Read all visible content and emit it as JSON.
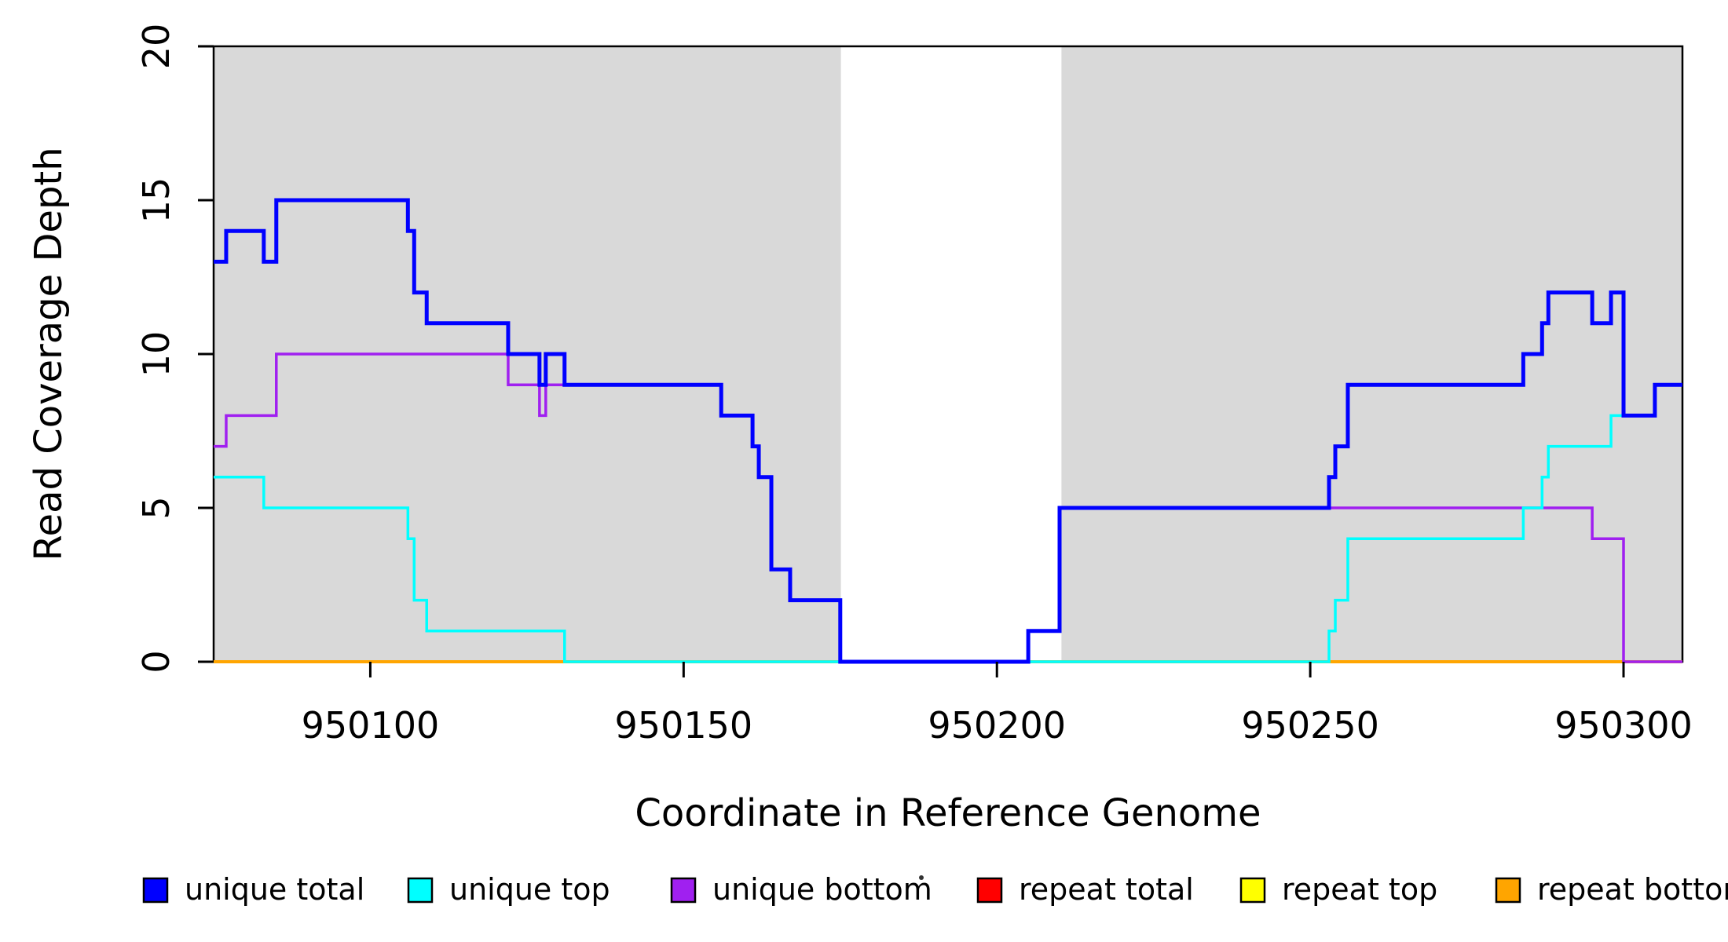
{
  "chart_data": {
    "type": "line",
    "subtype": "step-post",
    "title": "",
    "xlabel": "Coordinate in Reference Genome",
    "ylabel": "Read Coverage Depth",
    "xlim": [
      950075,
      950309.4
    ],
    "ylim": [
      0,
      20
    ],
    "x_ticks": [
      950100,
      950150,
      950200,
      950250,
      950300
    ],
    "x_tick_labels": [
      "950100",
      "950150",
      "950200",
      "950250",
      "950300"
    ],
    "y_ticks": [
      0,
      5,
      10,
      15,
      20
    ],
    "y_tick_labels": [
      "0",
      "5",
      "10",
      "15",
      "20"
    ],
    "grid": false,
    "plot_background": "#ffffff",
    "shade_color": "#d9d9d9",
    "shaded_regions": [
      [
        950075,
        950175.1
      ],
      [
        950210.3,
        950309.4
      ]
    ],
    "series": [
      {
        "name": "repeat total",
        "color": "#ff0000",
        "width": 3.5,
        "points": [
          [
            950075,
            0
          ],
          [
            950309.4,
            0
          ]
        ]
      },
      {
        "name": "repeat top",
        "color": "#ffff00",
        "width": 3.5,
        "points": [
          [
            950075,
            0
          ],
          [
            950309.4,
            0
          ]
        ]
      },
      {
        "name": "repeat bottom",
        "color": "#ffa500",
        "width": 4,
        "points": [
          [
            950075,
            0
          ],
          [
            950309.4,
            0
          ]
        ]
      },
      {
        "name": "unique bottom",
        "color": "#a020f0",
        "width": 3.5,
        "points": [
          [
            950075,
            7
          ],
          [
            950077,
            8
          ],
          [
            950085,
            10
          ],
          [
            950122,
            9
          ],
          [
            950127,
            8
          ],
          [
            950128,
            9
          ],
          [
            950156,
            8
          ],
          [
            950161,
            7
          ],
          [
            950162,
            6
          ],
          [
            950164,
            3
          ],
          [
            950167,
            2
          ],
          [
            950175,
            0
          ],
          [
            950205,
            1
          ],
          [
            950210,
            5
          ],
          [
            950295,
            4
          ],
          [
            950300,
            0
          ],
          [
            950309.4,
            0
          ]
        ]
      },
      {
        "name": "unique top",
        "color": "#00ffff",
        "width": 3.5,
        "points": [
          [
            950075,
            6
          ],
          [
            950083,
            5
          ],
          [
            950106,
            4
          ],
          [
            950107,
            2
          ],
          [
            950109,
            1
          ],
          [
            950131,
            0
          ],
          [
            950253,
            1
          ],
          [
            950254,
            2
          ],
          [
            950256,
            4
          ],
          [
            950284,
            5
          ],
          [
            950287,
            6
          ],
          [
            950288,
            7
          ],
          [
            950298,
            8
          ],
          [
            950305,
            9
          ],
          [
            950309.4,
            9
          ]
        ]
      },
      {
        "name": "unique total",
        "color": "#0000ff",
        "width": 5,
        "points": [
          [
            950075,
            13
          ],
          [
            950077,
            14
          ],
          [
            950083,
            13
          ],
          [
            950085,
            15
          ],
          [
            950106,
            14
          ],
          [
            950107,
            12
          ],
          [
            950109,
            11
          ],
          [
            950122,
            10
          ],
          [
            950127,
            9
          ],
          [
            950128,
            10
          ],
          [
            950131,
            9
          ],
          [
            950156,
            8
          ],
          [
            950161,
            7
          ],
          [
            950162,
            6
          ],
          [
            950164,
            3
          ],
          [
            950167,
            2
          ],
          [
            950175,
            0
          ],
          [
            950205,
            1
          ],
          [
            950210,
            5
          ],
          [
            950253,
            6
          ],
          [
            950254,
            7
          ],
          [
            950256,
            9
          ],
          [
            950284,
            10
          ],
          [
            950287,
            11
          ],
          [
            950288,
            12
          ],
          [
            950295,
            11
          ],
          [
            950298,
            12
          ],
          [
            950300,
            8
          ],
          [
            950305,
            9
          ],
          [
            950309.4,
            9
          ]
        ]
      }
    ],
    "legend_position": "bottom",
    "legend": [
      {
        "label": "unique total",
        "color": "#0000ff"
      },
      {
        "label": "unique top",
        "color": "#00ffff"
      },
      {
        "label": "unique bottom",
        "color": "#a020f0"
      },
      {
        "label": "repeat total",
        "color": "#ff0000"
      },
      {
        "label": "repeat top",
        "color": "#ffff00"
      },
      {
        "label": "repeat bottom",
        "color": "#ffa500"
      }
    ]
  }
}
